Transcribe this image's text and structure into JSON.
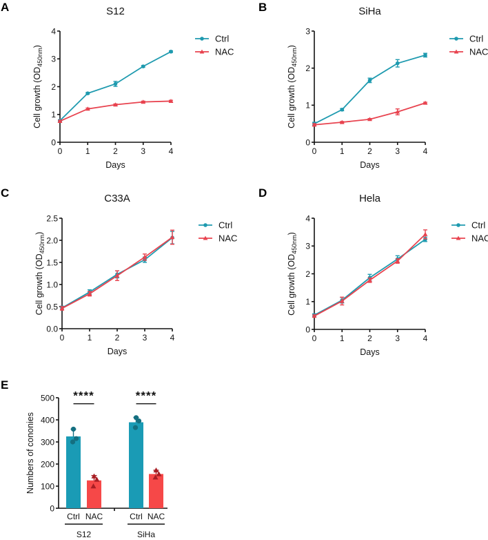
{
  "figure": {
    "panels": [
      "A",
      "B",
      "C",
      "D",
      "E"
    ]
  },
  "colors": {
    "ctrl": "#1e9aaf",
    "nac": "#e8434f",
    "bar_ctrl": "#1a9bb5",
    "bar_nac": "#f64848",
    "dot_ctrl": "#146f80",
    "dot_nac": "#a81e24"
  },
  "chart_data": [
    {
      "panel": "A",
      "type": "line",
      "title": "S12",
      "xlabel": "Days",
      "ylabel": "Cell growth (OD",
      "ylabel_sub": "450nm",
      "ylabel_end": ")",
      "x": [
        0,
        1,
        2,
        3,
        4
      ],
      "xticks": [
        "0",
        "1",
        "2",
        "3",
        "4"
      ],
      "ylim": [
        0,
        4
      ],
      "yticks": [
        "0",
        "1",
        "2",
        "3",
        "4"
      ],
      "ytick_values": [
        0,
        1,
        2,
        3,
        4
      ],
      "legend": [
        "Ctrl",
        "NAC"
      ],
      "legend_position": "top-right-outside",
      "series": [
        {
          "name": "Ctrl",
          "marker": "circle",
          "values": [
            0.78,
            1.76,
            2.1,
            2.73,
            3.26
          ],
          "err": [
            0.03,
            0.03,
            0.09,
            0.03,
            0.03
          ]
        },
        {
          "name": "NAC",
          "marker": "triangle",
          "values": [
            0.76,
            1.2,
            1.35,
            1.45,
            1.48
          ],
          "err": [
            0.03,
            0.03,
            0.03,
            0.03,
            0.03
          ]
        }
      ]
    },
    {
      "panel": "B",
      "type": "line",
      "title": "SiHa",
      "xlabel": "Days",
      "ylabel": "Cell growth (OD",
      "ylabel_sub": "450nm",
      "ylabel_end": ")",
      "x": [
        0,
        1,
        2,
        3,
        4
      ],
      "xticks": [
        "0",
        "1",
        "2",
        "3",
        "4"
      ],
      "ylim": [
        0,
        3
      ],
      "yticks": [
        "0",
        "1",
        "2",
        "3"
      ],
      "ytick_values": [
        0,
        1,
        2,
        3
      ],
      "legend": [
        "Ctrl",
        "NAC"
      ],
      "legend_position": "top-right-outside",
      "series": [
        {
          "name": "Ctrl",
          "marker": "circle",
          "values": [
            0.5,
            0.88,
            1.67,
            2.13,
            2.35
          ],
          "err": [
            0.04,
            0.03,
            0.06,
            0.1,
            0.05
          ]
        },
        {
          "name": "NAC",
          "marker": "triangle",
          "values": [
            0.47,
            0.54,
            0.62,
            0.82,
            1.06
          ],
          "err": [
            0.03,
            0.02,
            0.02,
            0.08,
            0.02
          ]
        }
      ]
    },
    {
      "panel": "C",
      "type": "line",
      "title": "C33A",
      "xlabel": "Days",
      "ylabel": "Cell growth (OD",
      "ylabel_sub": "450nm",
      "ylabel_end": ")",
      "x": [
        0,
        1,
        2,
        3,
        4
      ],
      "xticks": [
        "0",
        "1",
        "2",
        "3",
        "4"
      ],
      "ylim": [
        0,
        2.5
      ],
      "yticks": [
        "0.0",
        "0.5",
        "1.0",
        "1.5",
        "2.0",
        "2.5"
      ],
      "ytick_values": [
        0,
        0.5,
        1.0,
        1.5,
        2.0,
        2.5
      ],
      "legend": [
        "Ctrl",
        "NAC"
      ],
      "legend_position": "top-right-outside",
      "series": [
        {
          "name": "Ctrl",
          "marker": "circle",
          "values": [
            0.47,
            0.83,
            1.23,
            1.56,
            2.06
          ],
          "err": [
            0.04,
            0.05,
            0.08,
            0.06,
            0.14
          ]
        },
        {
          "name": "NAC",
          "marker": "triangle",
          "values": [
            0.46,
            0.79,
            1.2,
            1.62,
            2.07
          ],
          "err": [
            0.04,
            0.05,
            0.11,
            0.07,
            0.16
          ]
        }
      ]
    },
    {
      "panel": "D",
      "type": "line",
      "title": "Hela",
      "xlabel": "Days",
      "ylabel": "Cell growth (OD",
      "ylabel_sub": "450nm",
      "ylabel_end": ")",
      "x": [
        0,
        1,
        2,
        3,
        4
      ],
      "xticks": [
        "0",
        "1",
        "2",
        "3",
        "4"
      ],
      "ylim": [
        0,
        4
      ],
      "yticks": [
        "0",
        "1",
        "2",
        "3",
        "4"
      ],
      "ytick_values": [
        0,
        1,
        2,
        3,
        4
      ],
      "legend": [
        "Ctrl",
        "NAC"
      ],
      "legend_position": "top-right-outside",
      "series": [
        {
          "name": "Ctrl",
          "marker": "circle",
          "values": [
            0.51,
            1.05,
            1.86,
            2.53,
            3.24
          ],
          "err": [
            0.05,
            0.1,
            0.12,
            0.12,
            0.08
          ]
        },
        {
          "name": "NAC",
          "marker": "triangle",
          "values": [
            0.48,
            1.02,
            1.77,
            2.46,
            3.42
          ],
          "err": [
            0.04,
            0.14,
            0.08,
            0.08,
            0.16
          ]
        }
      ]
    },
    {
      "panel": "E",
      "type": "bar",
      "title": "",
      "xlabel": "",
      "ylabel": "Numbers of cononies",
      "ylim": [
        0,
        500
      ],
      "yticks": [
        "0",
        "100",
        "200",
        "300",
        "400",
        "500"
      ],
      "ytick_values": [
        0,
        100,
        200,
        300,
        400,
        500
      ],
      "groups": [
        {
          "name": "S12",
          "significance": "****",
          "bars": [
            {
              "name": "Ctrl",
              "value": 325,
              "err": 33,
              "points": [
                358,
                315,
                300
              ],
              "marker": "circle"
            },
            {
              "name": "NAC",
              "value": 126,
              "err": 22,
              "points": [
                145,
                130,
                100
              ],
              "marker": "triangle"
            }
          ]
        },
        {
          "name": "SiHa",
          "significance": "****",
          "bars": [
            {
              "name": "Ctrl",
              "value": 389,
              "err": 22,
              "points": [
                410,
                395,
                365
              ],
              "marker": "circle"
            },
            {
              "name": "NAC",
              "value": 155,
              "err": 17,
              "points": [
                172,
                155,
                140
              ],
              "marker": "triangle"
            }
          ]
        }
      ]
    }
  ]
}
